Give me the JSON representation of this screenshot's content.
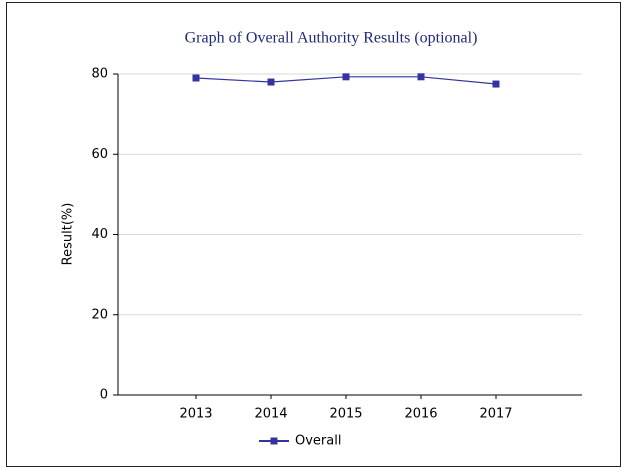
{
  "chart_data": {
    "type": "line",
    "title": "Graph of Overall Authority Results (optional)",
    "y_label": "Result(%)",
    "categories": [
      "2013",
      "2014",
      "2015",
      "2016",
      "2017"
    ],
    "series": [
      {
        "name": "Overall",
        "color": "#3434a0",
        "values": [
          79.0,
          78.0,
          79.3,
          79.3,
          77.5
        ]
      }
    ],
    "ylim": [
      0,
      80
    ],
    "yticks": [
      0,
      20,
      40,
      60,
      80
    ],
    "grid": true,
    "legend": "bottom"
  }
}
